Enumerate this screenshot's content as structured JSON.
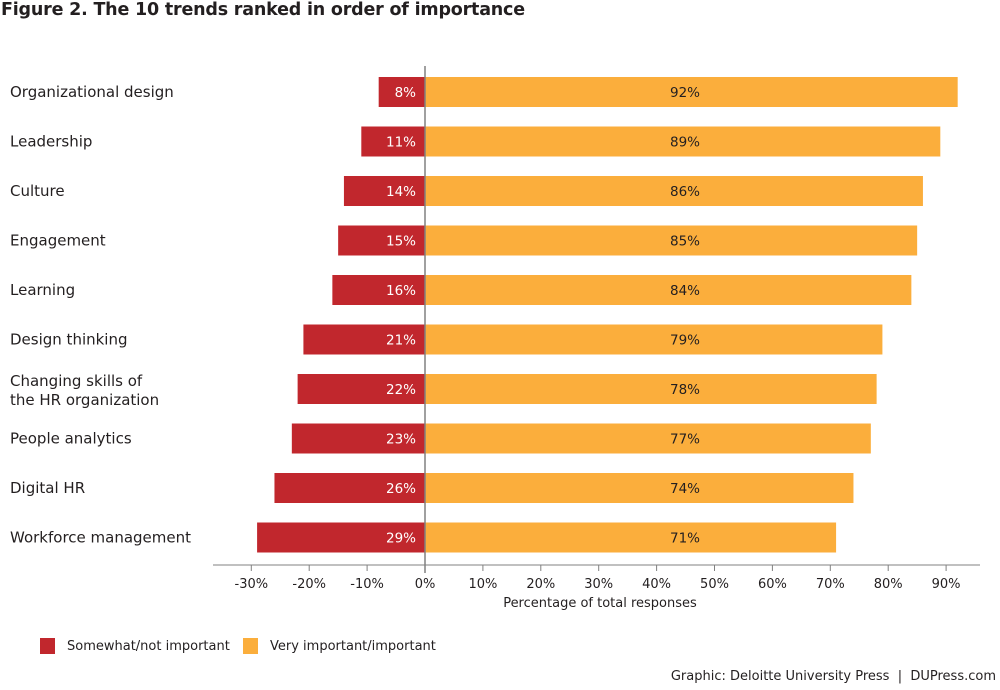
{
  "title": "Figure 2. The 10 trends ranked in order of importance",
  "credit": "Graphic: Deloitte University Press  |  DUPress.com",
  "colors": {
    "negative": "#c1272d",
    "positive": "#fbae3c",
    "axis": "#808080",
    "text": "#231f20"
  },
  "chart_data": {
    "type": "bar",
    "orientation": "horizontal",
    "stacked": "diverging",
    "title": "Figure 2. The 10 trends ranked in order of importance",
    "xlabel": "Percentage of total responses",
    "ylabel": "",
    "xlim": [
      -33,
      95
    ],
    "xticks": [
      -30,
      -20,
      -10,
      0,
      10,
      20,
      30,
      40,
      50,
      60,
      70,
      80,
      90
    ],
    "xtick_labels": [
      "-30%",
      "-20%",
      "-10%",
      "0%",
      "10%",
      "20%",
      "30%",
      "40%",
      "50%",
      "60%",
      "70%",
      "80%",
      "90%"
    ],
    "grid": false,
    "legend_position": "bottom-left",
    "categories": [
      [
        "Organizational design"
      ],
      [
        "Leadership"
      ],
      [
        "Culture"
      ],
      [
        "Engagement"
      ],
      [
        "Learning"
      ],
      [
        "Design thinking"
      ],
      [
        "Changing skills of",
        "the HR organization"
      ],
      [
        "People analytics"
      ],
      [
        "Digital HR"
      ],
      [
        "Workforce management"
      ]
    ],
    "series": [
      {
        "name": "Somewhat/not important",
        "values": [
          8,
          11,
          14,
          15,
          16,
          21,
          22,
          23,
          26,
          29
        ],
        "labels": [
          "8%",
          "11%",
          "14%",
          "15%",
          "16%",
          "21%",
          "22%",
          "23%",
          "26%",
          "29%"
        ],
        "direction": "negative"
      },
      {
        "name": "Very important/important",
        "values": [
          92,
          89,
          86,
          85,
          84,
          79,
          78,
          77,
          74,
          71
        ],
        "labels": [
          "92%",
          "89%",
          "86%",
          "85%",
          "84%",
          "79%",
          "78%",
          "77%",
          "74%",
          "71%"
        ],
        "direction": "positive"
      }
    ]
  }
}
